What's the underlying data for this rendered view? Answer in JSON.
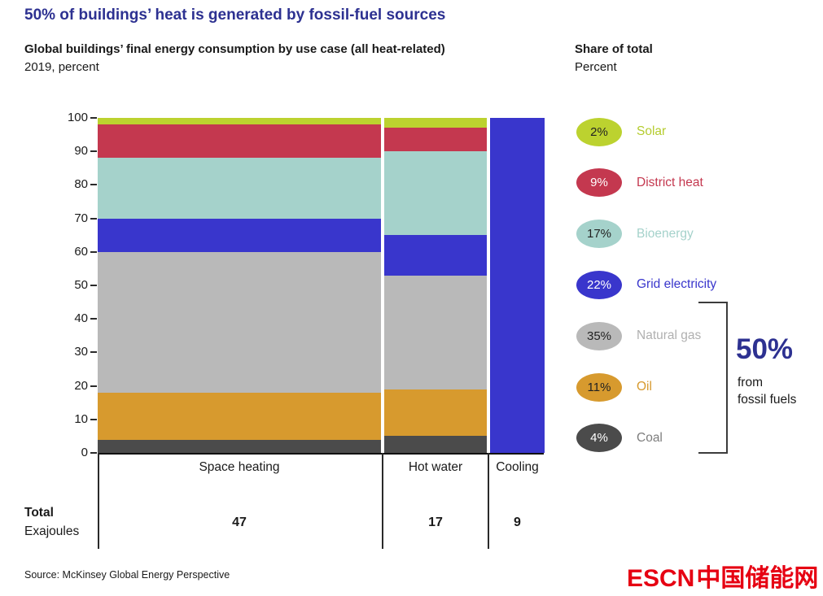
{
  "page": {
    "title": "50% of buildings’ heat is generated by fossil-fuel sources",
    "subtitle_line1": "Global buildings’ final energy consumption by use case (all heat-related)",
    "subtitle_line2": "2019, percent",
    "share_header_line1": "Share of total",
    "share_header_line2": "Percent",
    "source": "Source: McKinsey Global Energy Perspective",
    "watermark_latin": "ESCN",
    "watermark_cjk": "中国储能网",
    "accent_navy": "#2d3191",
    "watermark_red": "#e60012"
  },
  "chart_data": {
    "type": "bar",
    "variant": "marimekko-stacked",
    "unit": "percent",
    "categories": [
      "Space heating",
      "Hot water",
      "Cooling"
    ],
    "column_totals": [
      47,
      17,
      9
    ],
    "total_label": "Total",
    "total_unit": "Exajoules",
    "y_axis": {
      "min": 0,
      "max": 100,
      "tick_step": 10,
      "ticks": [
        0,
        10,
        20,
        30,
        40,
        50,
        60,
        70,
        80,
        90,
        100
      ]
    },
    "series": [
      {
        "name": "Coal",
        "color": "#4b4b4b",
        "share_of_total": "4%",
        "values": [
          4,
          5,
          0
        ]
      },
      {
        "name": "Oil",
        "color": "#d79a2e",
        "share_of_total": "11%",
        "values": [
          14,
          14,
          0
        ]
      },
      {
        "name": "Natural gas",
        "color": "#b9b9b9",
        "share_of_total": "35%",
        "values": [
          42,
          34,
          0
        ]
      },
      {
        "name": "Grid electricity",
        "color": "#3936cc",
        "share_of_total": "22%",
        "values": [
          10,
          12,
          100
        ]
      },
      {
        "name": "Bioenergy",
        "color": "#a5d2cb",
        "share_of_total": "17%",
        "values": [
          18,
          25,
          0
        ]
      },
      {
        "name": "District heat",
        "color": "#c4384f",
        "share_of_total": "9%",
        "values": [
          10,
          7,
          0
        ]
      },
      {
        "name": "Solar",
        "color": "#bcd22f",
        "share_of_total": "2%",
        "values": [
          2,
          3,
          0
        ]
      }
    ],
    "legend": [
      {
        "pct": "2%",
        "label": "Solar",
        "color": "#bcd22f",
        "pct_color": "#222222",
        "label_color": "#b5cc2e"
      },
      {
        "pct": "9%",
        "label": "District heat",
        "color": "#c4384f",
        "pct_color": "#ffffff",
        "label_color": "#c4384f"
      },
      {
        "pct": "17%",
        "label": "Bioenergy",
        "color": "#a5d2cb",
        "pct_color": "#222222",
        "label_color": "#a5d2cb"
      },
      {
        "pct": "22%",
        "label": "Grid electricity",
        "color": "#3936cc",
        "pct_color": "#ffffff",
        "label_color": "#3936cc"
      },
      {
        "pct": "35%",
        "label": "Natural gas",
        "color": "#b9b9b9",
        "pct_color": "#222222",
        "label_color": "#b0b0b0"
      },
      {
        "pct": "11%",
        "label": "Oil",
        "color": "#d79a2e",
        "pct_color": "#222222",
        "label_color": "#d79a2e"
      },
      {
        "pct": "4%",
        "label": "Coal",
        "color": "#4b4b4b",
        "pct_color": "#ffffff",
        "label_color": "#7d7d7d"
      }
    ],
    "callout": {
      "value": "50%",
      "line1": "from",
      "line2": "fossil fuels"
    }
  }
}
